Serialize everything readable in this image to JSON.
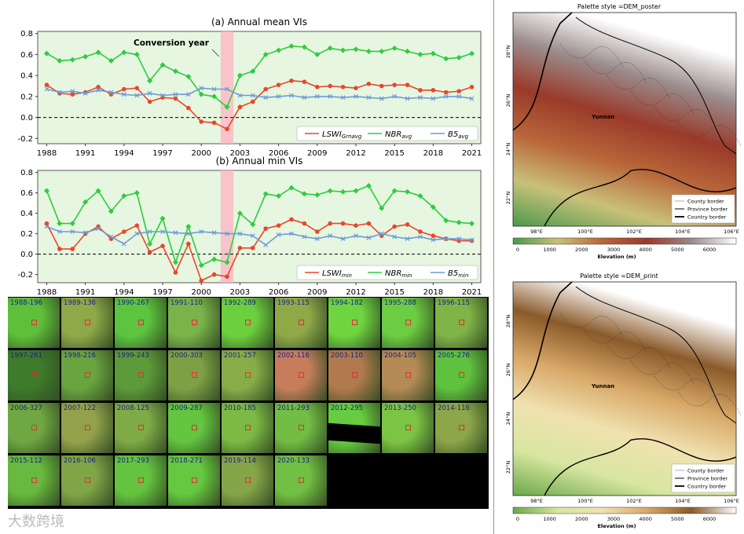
{
  "chart_data": [
    {
      "type": "line",
      "title": "(a) Annual mean VIs",
      "annotation": "Conversion year",
      "x": [
        1988,
        1989,
        1990,
        1991,
        1992,
        1993,
        1994,
        1995,
        1996,
        1997,
        1998,
        1999,
        2000,
        2001,
        2002,
        2003,
        2004,
        2005,
        2006,
        2007,
        2008,
        2009,
        2010,
        2011,
        2012,
        2013,
        2014,
        2015,
        2016,
        2017,
        2018,
        2019,
        2020,
        2021
      ],
      "xticks": [
        "1988",
        "1991",
        "1994",
        "1997",
        "2000",
        "2003",
        "2006",
        "2009",
        "2012",
        "2015",
        "2018",
        "2021"
      ],
      "yticks": [
        "-0.2",
        "0.0",
        "0.2",
        "0.4",
        "0.6",
        "0.8"
      ],
      "ylim": [
        -0.25,
        0.82
      ],
      "highlight_x": [
        2001.5,
        2002.5
      ],
      "series": [
        {
          "name": "LSWI",
          "sub": "Grnavg",
          "color": "#e8472b",
          "values": [
            0.31,
            0.23,
            0.22,
            0.24,
            0.29,
            0.22,
            0.27,
            0.28,
            0.15,
            0.19,
            0.18,
            0.09,
            -0.04,
            -0.05,
            -0.11,
            0.1,
            0.15,
            0.27,
            0.31,
            0.35,
            0.34,
            0.29,
            0.3,
            0.29,
            0.28,
            0.32,
            0.3,
            0.31,
            0.31,
            0.26,
            0.26,
            0.24,
            0.25,
            0.29
          ]
        },
        {
          "name": "NBR",
          "sub": "avg",
          "color": "#2ecc40",
          "values": [
            0.61,
            0.54,
            0.55,
            0.58,
            0.62,
            0.54,
            0.62,
            0.6,
            0.35,
            0.5,
            0.44,
            0.39,
            0.22,
            0.2,
            0.1,
            0.4,
            0.44,
            0.6,
            0.64,
            0.68,
            0.67,
            0.6,
            0.66,
            0.64,
            0.65,
            0.63,
            0.63,
            0.66,
            0.63,
            0.6,
            0.61,
            0.56,
            0.57,
            0.61
          ]
        },
        {
          "name": "B5",
          "sub": "avg",
          "color": "#6b9bd8",
          "values": [
            0.27,
            0.24,
            0.25,
            0.23,
            0.26,
            0.24,
            0.22,
            0.21,
            0.23,
            0.21,
            0.22,
            0.22,
            0.28,
            0.27,
            0.27,
            0.21,
            0.21,
            0.19,
            0.2,
            0.21,
            0.19,
            0.2,
            0.2,
            0.19,
            0.2,
            0.19,
            0.18,
            0.2,
            0.18,
            0.19,
            0.18,
            0.2,
            0.2,
            0.18
          ]
        }
      ]
    },
    {
      "type": "line",
      "title": "(b) Annual min VIs",
      "x": [
        1988,
        1989,
        1990,
        1991,
        1992,
        1993,
        1994,
        1995,
        1996,
        1997,
        1998,
        1999,
        2000,
        2001,
        2002,
        2003,
        2004,
        2005,
        2006,
        2007,
        2008,
        2009,
        2010,
        2011,
        2012,
        2013,
        2014,
        2015,
        2016,
        2017,
        2018,
        2019,
        2020,
        2021
      ],
      "xticks": [
        "1988",
        "1991",
        "1994",
        "1997",
        "2000",
        "2003",
        "2006",
        "2009",
        "2012",
        "2015",
        "2018",
        "2021"
      ],
      "yticks": [
        "-0.2",
        "0.0",
        "0.2",
        "0.4",
        "0.6",
        "0.8"
      ],
      "ylim": [
        -0.28,
        0.82
      ],
      "highlight_x": [
        2001.5,
        2002.5
      ],
      "series": [
        {
          "name": "LSWI",
          "sub": "min",
          "color": "#e8472b",
          "values": [
            0.3,
            0.05,
            0.05,
            0.2,
            0.27,
            0.15,
            0.22,
            0.28,
            0.02,
            0.08,
            -0.18,
            0.1,
            -0.26,
            -0.2,
            -0.22,
            0.06,
            0.06,
            0.25,
            0.28,
            0.34,
            0.3,
            0.22,
            0.3,
            0.3,
            0.28,
            0.3,
            0.18,
            0.27,
            0.29,
            0.22,
            0.18,
            0.15,
            0.13,
            0.13
          ]
        },
        {
          "name": "NBR",
          "sub": "min",
          "color": "#2ecc40",
          "values": [
            0.62,
            0.3,
            0.3,
            0.51,
            0.62,
            0.42,
            0.57,
            0.6,
            0.1,
            0.35,
            -0.08,
            0.27,
            -0.11,
            -0.05,
            -0.08,
            0.4,
            0.29,
            0.59,
            0.57,
            0.65,
            0.59,
            0.58,
            0.62,
            0.61,
            0.62,
            0.67,
            0.45,
            0.62,
            0.61,
            0.57,
            0.46,
            0.33,
            0.31,
            0.3
          ]
        },
        {
          "name": "B5",
          "sub": "min",
          "color": "#6b9bd8",
          "values": [
            0.27,
            0.22,
            0.22,
            0.21,
            0.25,
            0.17,
            0.1,
            0.2,
            0.22,
            0.22,
            0.21,
            0.2,
            0.22,
            0.21,
            0.2,
            0.2,
            0.18,
            0.09,
            0.19,
            0.2,
            0.17,
            0.15,
            0.18,
            0.15,
            0.18,
            0.16,
            0.2,
            0.17,
            0.15,
            0.17,
            0.14,
            0.15,
            0.15,
            0.14
          ]
        }
      ]
    }
  ],
  "thumbnails": [
    {
      "label": "1988-196",
      "color": "#5fbf3a"
    },
    {
      "label": "1989-136",
      "color": "#8fa848"
    },
    {
      "label": "1990-267",
      "color": "#5cc43f"
    },
    {
      "label": "1991-110",
      "color": "#7ab34a"
    },
    {
      "label": "1992-289",
      "color": "#6ccf3e"
    },
    {
      "label": "1993-115",
      "color": "#8fa848"
    },
    {
      "label": "1994-182",
      "color": "#6ed440"
    },
    {
      "label": "1995-288",
      "color": "#6ccc42"
    },
    {
      "label": "1996-115",
      "color": "#7fb446"
    },
    {
      "label": "1997-261",
      "color": "#3d7a2a"
    },
    {
      "label": "1998-216",
      "color": "#6aa43f"
    },
    {
      "label": "1999-243",
      "color": "#5d9a39"
    },
    {
      "label": "2000-303",
      "color": "#7ea045"
    },
    {
      "label": "2001-257",
      "color": "#88ad48"
    },
    {
      "label": "2002-116",
      "color": "#c77d5c"
    },
    {
      "label": "2003-110",
      "color": "#b07a4e"
    },
    {
      "label": "2004-105",
      "color": "#b48a55"
    },
    {
      "label": "2005-276",
      "color": "#5ec23e"
    },
    {
      "label": "2006-327",
      "color": "#6fa842"
    },
    {
      "label": "2007-122",
      "color": "#93a24a"
    },
    {
      "label": "2008-125",
      "color": "#7eab46"
    },
    {
      "label": "2009-287",
      "color": "#63c540"
    },
    {
      "label": "2010-185",
      "color": "#7cba45"
    },
    {
      "label": "2011-293",
      "color": "#72bd44"
    },
    {
      "label": "2012-295",
      "color": "#66cc40"
    },
    {
      "label": "2013-250",
      "color": "#7cc544"
    },
    {
      "label": "2014-116",
      "color": "#8ca649"
    },
    {
      "label": "2015-112",
      "color": "#68b93f"
    },
    {
      "label": "2016-106",
      "color": "#7fa547"
    },
    {
      "label": "2017-293",
      "color": "#64c43f"
    },
    {
      "label": "2018-271",
      "color": "#66c840"
    },
    {
      "label": "2019-114",
      "color": "#86a448"
    },
    {
      "label": "2020-133",
      "color": "#72c043"
    }
  ],
  "maps": [
    {
      "title": "Palette style =DEM_poster",
      "region_label": "Yunnan",
      "lon_ticks": [
        "98°E",
        "100°E",
        "102°E",
        "104°E",
        "106°E"
      ],
      "lat_ticks": [
        "28°N",
        "26°N",
        "24°N",
        "22°N"
      ],
      "colorbar_ticks": [
        "0",
        "1000",
        "2000",
        "3000",
        "4000",
        "5000",
        "6000"
      ],
      "colorbar_label": "Elevation (m)",
      "legend": [
        "County border",
        "Province border",
        "Country border"
      ],
      "palette": [
        "#4a9a4a",
        "#c9c07a",
        "#b8663a",
        "#9a3a2a",
        "#9a8a8a",
        "#ffffff"
      ]
    },
    {
      "title": "Palette style =DEM_print",
      "region_label": "Yunnan",
      "lon_ticks": [
        "98°E",
        "100°E",
        "102°E",
        "104°E",
        "106°E"
      ],
      "lat_ticks": [
        "28°N",
        "26°N",
        "24°N",
        "22°N"
      ],
      "colorbar_ticks": [
        "0",
        "1000",
        "2000",
        "3000",
        "4000",
        "5000",
        "6000"
      ],
      "colorbar_label": "Elevation (m)",
      "legend": [
        "County border",
        "Province border",
        "Country border"
      ],
      "palette": [
        "#6aa84a",
        "#d8e6a0",
        "#f0e2b0",
        "#d8a868",
        "#8a5a2a",
        "#ffffff"
      ]
    }
  ],
  "watermark": "大数跨境"
}
